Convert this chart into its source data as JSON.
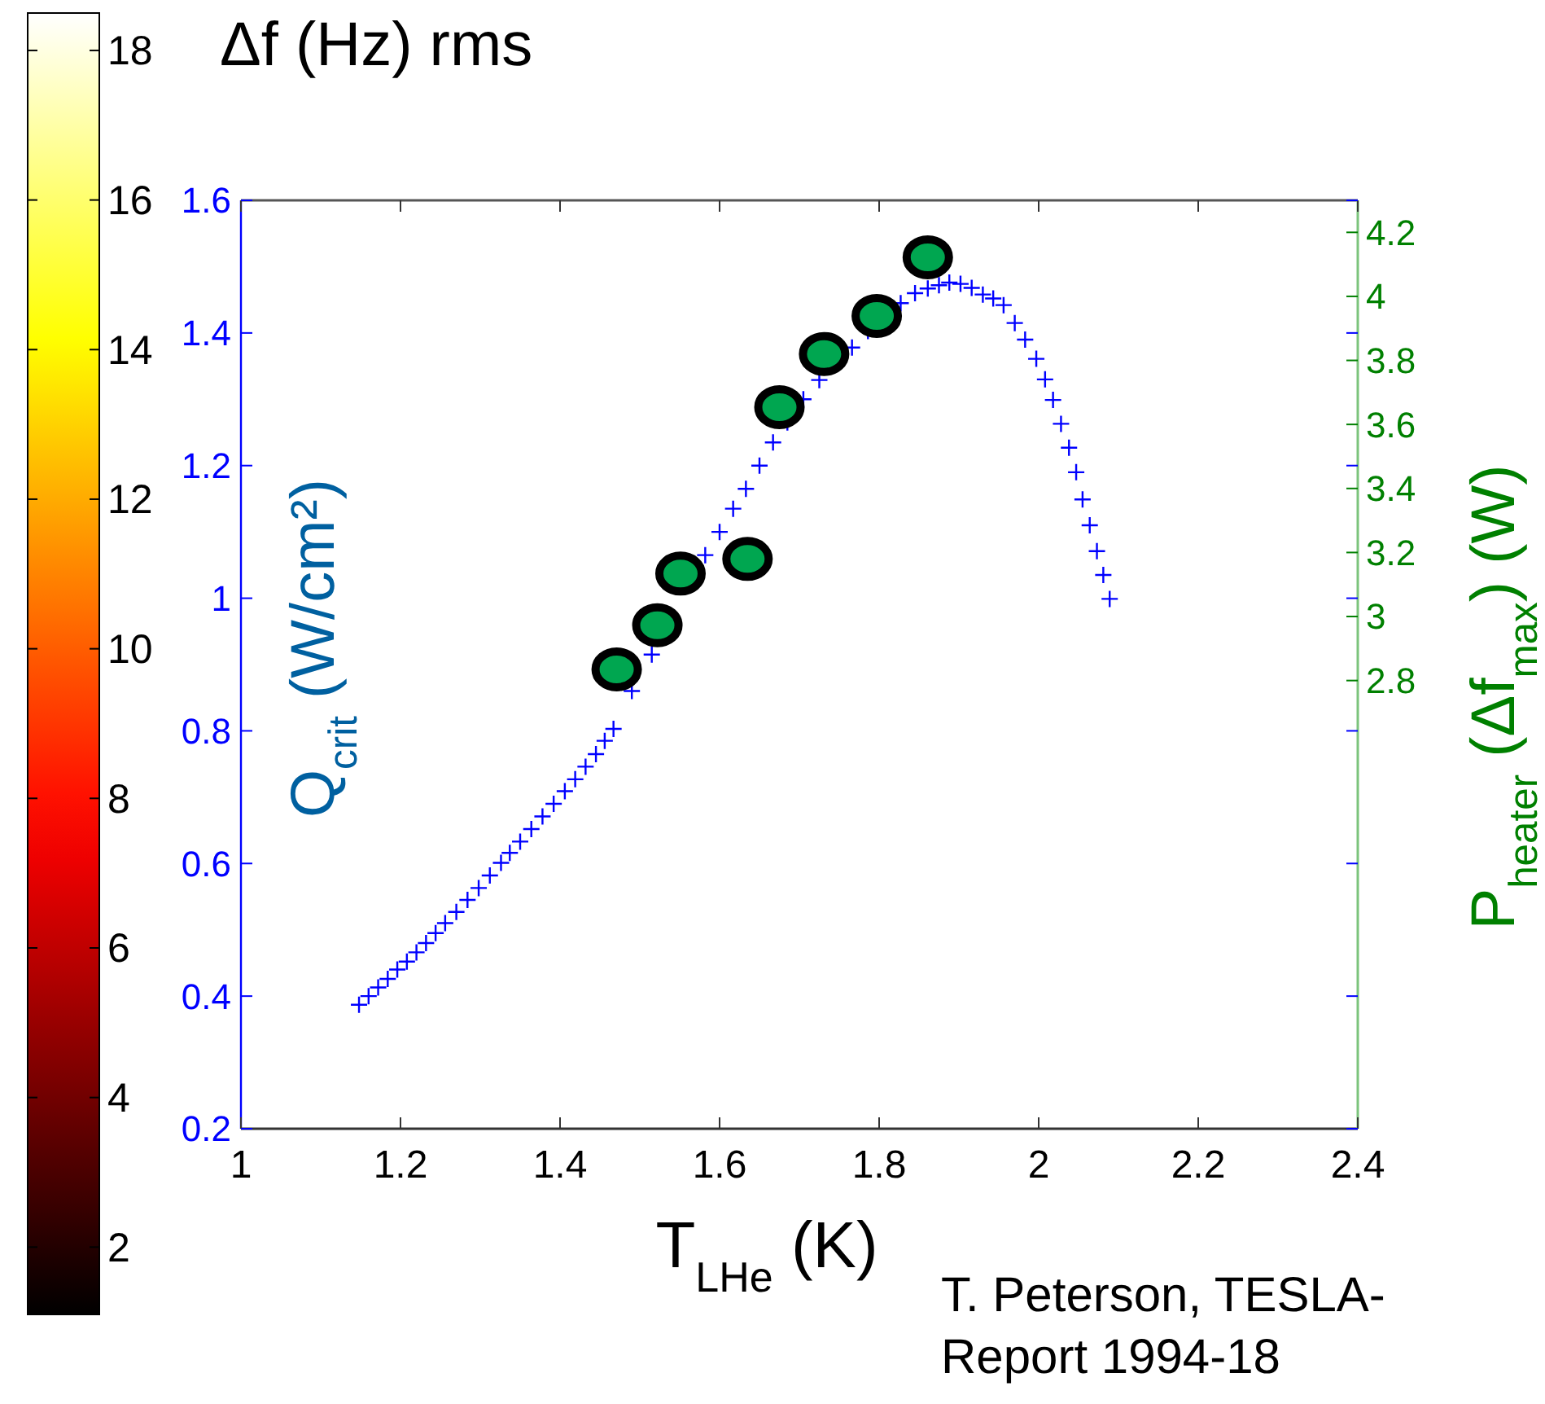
{
  "chart_data": {
    "type": "scatter",
    "xlabel": "T$_{LHe}$ (K)",
    "ylabel": "Q$_{crit}$ (W/cm²)",
    "y2label": "P$_{heater}$ (Δf$_{max}$)  (W)",
    "clabel": "Δf (Hz) rms",
    "annotations": [
      "T. Peterson, TESLA-Report 1994-18"
    ],
    "xlim": [
      1,
      2.4
    ],
    "xticks": [
      1,
      1.2,
      1.4,
      1.6,
      1.8,
      2,
      2.2,
      2.4
    ],
    "ylim": [
      0.2,
      1.6
    ],
    "yticks": [
      0.2,
      0.4,
      0.6,
      0.8,
      1,
      1.2,
      1.4,
      1.6
    ],
    "y2lim": [
      1.4,
      4.3
    ],
    "y2ticks": [
      2.8,
      3,
      3.2,
      3.4,
      3.6,
      3.8,
      4,
      4.2
    ],
    "clim": [
      1.1,
      18.5
    ],
    "cticks": [
      2,
      4,
      6,
      8,
      10,
      12,
      14,
      16,
      18
    ],
    "series": [
      {
        "marker": "cross",
        "color": "#0000ff",
        "x": [
          1.148,
          1.16,
          1.172,
          1.184,
          1.196,
          1.208,
          1.22,
          1.232,
          1.244,
          1.256,
          1.27,
          1.284,
          1.298,
          1.312,
          1.326,
          1.337,
          1.35,
          1.364,
          1.378,
          1.392,
          1.406,
          1.419,
          1.432,
          1.445,
          1.456,
          1.467,
          1.49,
          1.515,
          1.582,
          1.6,
          1.617,
          1.633,
          1.65,
          1.667,
          1.685,
          1.705,
          1.725,
          1.766,
          1.786,
          1.827,
          1.845,
          1.861,
          1.875,
          1.888,
          1.902,
          1.916,
          1.93,
          1.943,
          1.956,
          1.97,
          1.983,
          1.997,
          2.008,
          2.018,
          2.028,
          2.038,
          2.047,
          2.055,
          2.064,
          2.073,
          2.081,
          2.089
        ],
        "values": [
          0.387,
          0.4,
          0.413,
          0.426,
          0.44,
          0.452,
          0.466,
          0.48,
          0.495,
          0.51,
          0.527,
          0.545,
          0.563,
          0.582,
          0.601,
          0.616,
          0.633,
          0.652,
          0.671,
          0.69,
          0.709,
          0.727,
          0.746,
          0.765,
          0.785,
          0.803,
          0.86,
          0.915,
          1.065,
          1.1,
          1.135,
          1.165,
          1.2,
          1.235,
          1.265,
          1.3,
          1.329,
          1.378,
          1.403,
          1.445,
          1.46,
          1.467,
          1.472,
          1.476,
          1.474,
          1.468,
          1.458,
          1.452,
          1.442,
          1.415,
          1.39,
          1.361,
          1.33,
          1.299,
          1.263,
          1.227,
          1.19,
          1.149,
          1.11,
          1.071,
          1.035,
          0.999
        ]
      },
      {
        "marker": "circle",
        "axis": "y2",
        "color": "#00a650",
        "x": [
          1.471,
          1.522,
          1.551,
          1.635,
          1.675,
          1.731,
          1.797,
          1.861
        ],
        "values": [
          2.835,
          2.973,
          3.134,
          3.18,
          3.654,
          3.82,
          3.939,
          4.122
        ]
      }
    ]
  }
}
